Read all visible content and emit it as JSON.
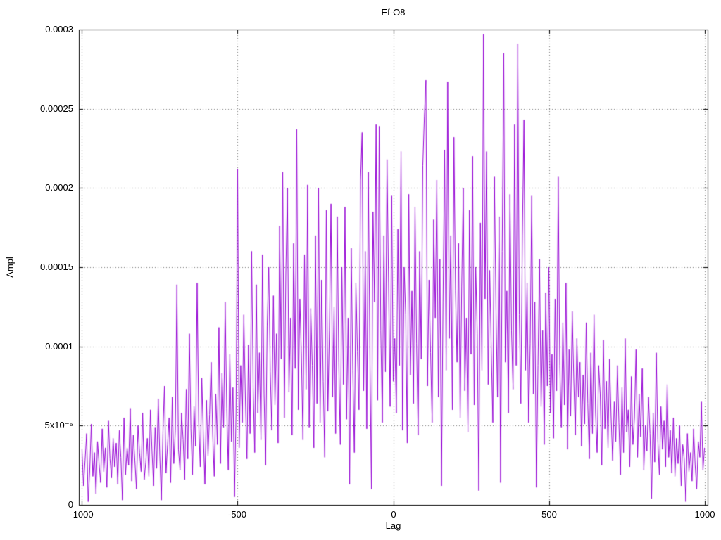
{
  "chart_data": {
    "type": "line",
    "title": "Ef-O8",
    "xlabel": "Lag",
    "ylabel": "Ampl",
    "xlim": [
      -1010,
      1010
    ],
    "ylim": [
      0,
      0.0003
    ],
    "grid": true,
    "legend": "none",
    "series_color": "#9400d3",
    "x_tick_values": [
      -1000,
      -500,
      0,
      500,
      1000
    ],
    "x_tick_labels": [
      "-1000",
      "-500",
      "0",
      "500",
      "1000"
    ],
    "y_tick_values": [
      0,
      5e-05,
      0.0001,
      0.00015,
      0.0002,
      0.00025,
      0.0003
    ],
    "y_tick_labels": [
      "0",
      "5x10⁻⁵",
      "0.0001",
      "0.00015",
      "0.0002",
      "0.00025",
      "0.0003"
    ],
    "x_start": -1000,
    "x_step": 5,
    "y_unit": 1e-06,
    "y_values": [
      35,
      12,
      28,
      45,
      2,
      22,
      51,
      18,
      33,
      7,
      40,
      26,
      14,
      48,
      21,
      36,
      11,
      53,
      29,
      17,
      42,
      24,
      39,
      13,
      47,
      30,
      3,
      55,
      19,
      36,
      25,
      61,
      15,
      44,
      28,
      10,
      50,
      33,
      21,
      58,
      16,
      27,
      42,
      18,
      60,
      34,
      12,
      49,
      23,
      67,
      31,
      3,
      45,
      75,
      20,
      38,
      55,
      14,
      68,
      26,
      47,
      139,
      35,
      22,
      58,
      41,
      16,
      73,
      29,
      108,
      48,
      19,
      62,
      37,
      140,
      52,
      24,
      80,
      43,
      13,
      66,
      31,
      57,
      90,
      44,
      18,
      70,
      38,
      112,
      26,
      83,
      49,
      128,
      61,
      22,
      95,
      40,
      74,
      5,
      58,
      212,
      36,
      88,
      52,
      120,
      67,
      29,
      101,
      45,
      160,
      74,
      33,
      139,
      58,
      96,
      41,
      158,
      70,
      25,
      113,
      150,
      84,
      47,
      132,
      63,
      108,
      39,
      176,
      92,
      210,
      55,
      146,
      200,
      71,
      118,
      44,
      165,
      86,
      237,
      60,
      130,
      95,
      41,
      158,
      73,
      202,
      49,
      124,
      88,
      36,
      170,
      64,
      200,
      52,
      142,
      78,
      30,
      186,
      59,
      110,
      190,
      68,
      125,
      45,
      182,
      90,
      38,
      150,
      76,
      188,
      54,
      118,
      13,
      162,
      85,
      33,
      140,
      97,
      60,
      205,
      235,
      72,
      160,
      48,
      210,
      95,
      10,
      185,
      128,
      240,
      66,
      239,
      110,
      52,
      170,
      84,
      218,
      140,
      62,
      195,
      78,
      105,
      58,
      174,
      88,
      223,
      47,
      150,
      120,
      39,
      196,
      82,
      135,
      64,
      188,
      102,
      44,
      160,
      92,
      214,
      245,
      268,
      75,
      142,
      96,
      52,
      180,
      118,
      205,
      68,
      155,
      12,
      128,
      224,
      85,
      267,
      105,
      170,
      60,
      232,
      135,
      90,
      165,
      55,
      138,
      200,
      72,
      118,
      46,
      186,
      95,
      220,
      63,
      150,
      108,
      9,
      178,
      85,
      297,
      130,
      223,
      76,
      148,
      98,
      52,
      207,
      125,
      68,
      182,
      14,
      160,
      285,
      90,
      135,
      58,
      196,
      110,
      73,
      240,
      88,
      291,
      120,
      64,
      170,
      243,
      85,
      140,
      52,
      102,
      195,
      70,
      128,
      11,
      88,
      155,
      62,
      110,
      38,
      134,
      75,
      150,
      58,
      95,
      42,
      130,
      72,
      207,
      88,
      49,
      115,
      63,
      140,
      35,
      98,
      56,
      122,
      80,
      44,
      105,
      68,
      90,
      37,
      82,
      51,
      115,
      64,
      29,
      96,
      45,
      120,
      58,
      33,
      88,
      70,
      25,
      104,
      48,
      78,
      36,
      92,
      55,
      28,
      65,
      40,
      88,
      52,
      19,
      74,
      33,
      105,
      46,
      60,
      24,
      81,
      38,
      55,
      98,
      30,
      70,
      43,
      86,
      22,
      50,
      34,
      68,
      45,
      4,
      58,
      27,
      96,
      41,
      19,
      62,
      35,
      53,
      24,
      76,
      30,
      47,
      20,
      55,
      18,
      42,
      26,
      50,
      12,
      38,
      29,
      2,
      45,
      21,
      33,
      15,
      48,
      25,
      10,
      40,
      30,
      65,
      22,
      36
    ]
  }
}
